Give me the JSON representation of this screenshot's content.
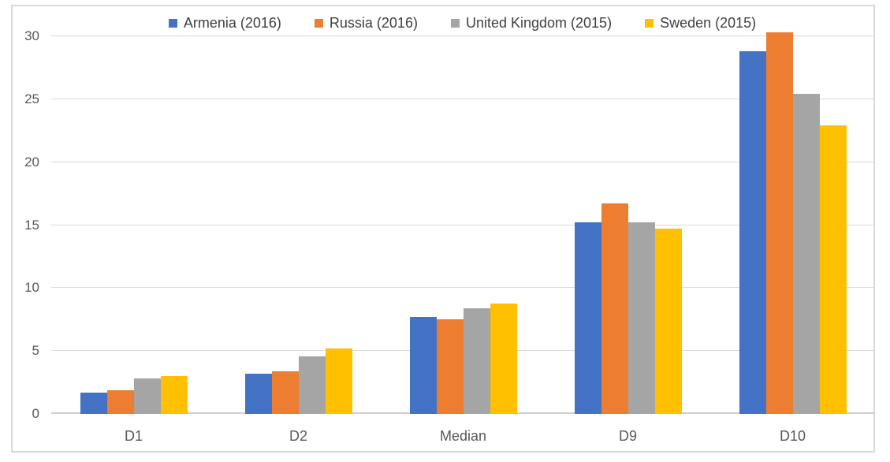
{
  "chart_data": {
    "type": "bar",
    "title": "",
    "xlabel": "",
    "ylabel": "",
    "categories": [
      "D1",
      "D2",
      "Median",
      "D9",
      "D10"
    ],
    "series": [
      {
        "name": "Armenia (2016)",
        "color": "#4472C4",
        "values": [
          1.7,
          3.2,
          7.7,
          15.2,
          28.8
        ]
      },
      {
        "name": "Russia (2016)",
        "color": "#ED7D31",
        "values": [
          1.9,
          3.4,
          7.5,
          16.7,
          30.3
        ]
      },
      {
        "name": "United Kingdom (2015)",
        "color": "#A5A5A5",
        "values": [
          2.8,
          4.6,
          8.4,
          15.2,
          25.4
        ]
      },
      {
        "name": "Sweden (2015)",
        "color": "#FFC000",
        "values": [
          3.0,
          5.2,
          8.8,
          14.7,
          22.9
        ]
      }
    ],
    "y_axis": {
      "min": 0,
      "max": 30,
      "step": 5,
      "ticks": [
        0,
        5,
        10,
        15,
        20,
        25,
        30
      ]
    },
    "grid": true,
    "legend_position": "top"
  },
  "style": {
    "background": "#FFFFFF",
    "border_color": "#D9D9D9",
    "gridline_color": "#D9D9D9",
    "baseline_color": "#CFCFCF",
    "axis_text_color": "#595959",
    "legend_text_color": "#404040"
  }
}
